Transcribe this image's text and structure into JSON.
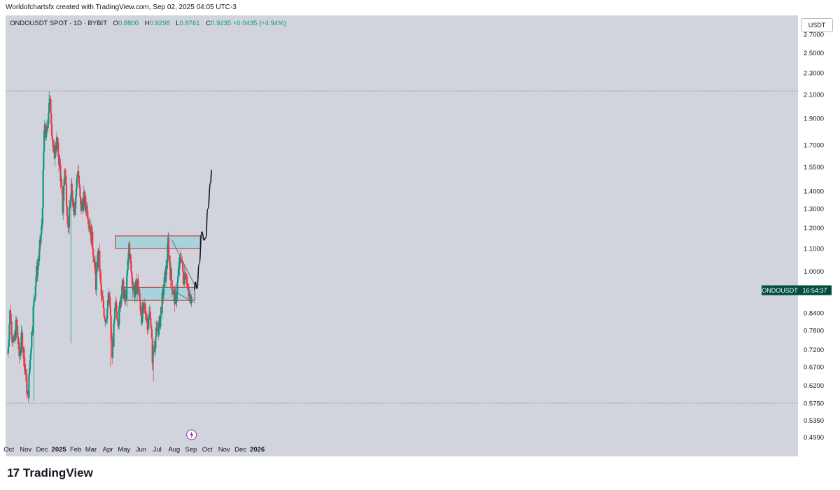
{
  "header": {
    "credit": "Worldofchartsfx created with TradingView.com, Sep 02, 2025 04:05 UTC-3"
  },
  "legend": {
    "symbol": "ONDOUSDT SPOT · 1D · BYBIT",
    "open_label": "O",
    "open": "0.8800",
    "high_label": "H",
    "high": "0.9298",
    "low_label": "L",
    "low": "0.8761",
    "close_label": "C",
    "close": "0.9235",
    "change": "+0.0435 (+4.94%)"
  },
  "currency_button": "USDT",
  "ticker_tag": {
    "symbol": "ONDOUSDT",
    "countdown": "16:54:37"
  },
  "footer": {
    "brand": "TradingView"
  },
  "colors": {
    "up": "#089981",
    "down": "#f23645",
    "zone_fill": "#a8d3dc",
    "zone_border": "#c62828",
    "background": "#d1d4dc"
  },
  "chart_data": {
    "type": "candlestick",
    "symbol": "ONDOUSDT",
    "interval": "1D",
    "y_scale": "log",
    "y_ticks": [
      "2.7000",
      "2.5000",
      "2.3000",
      "2.1000",
      "1.9000",
      "1.7000",
      "1.5500",
      "1.4000",
      "1.3000",
      "1.2000",
      "1.1000",
      "1.0000",
      "0.8400",
      "0.7800",
      "0.7200",
      "0.6700",
      "0.6200",
      "0.5750",
      "0.5350",
      "0.4990"
    ],
    "x_ticks": [
      "Oct",
      "Nov",
      "Dec",
      "2025",
      "Feb",
      "Mar",
      "Apr",
      "May",
      "Jun",
      "Jul",
      "Aug",
      "Sep",
      "Oct",
      "Nov",
      "Dec",
      "2026"
    ],
    "current_price": 0.9235,
    "horizontal_levels": [
      2.13,
      0.575
    ],
    "zones": [
      {
        "name": "resistance",
        "from": "2025-04-15",
        "to": "2025-09-18",
        "low": 1.1,
        "high": 1.16
      },
      {
        "name": "support",
        "from": "2025-05-01",
        "to": "2025-09-08",
        "low": 0.885,
        "high": 0.935
      }
    ],
    "wedge_lines": [
      {
        "start": [
          "2025-07-28",
          1.14
        ],
        "end": [
          "2025-09-10",
          0.935
        ]
      },
      {
        "start": [
          "2025-07-28",
          0.925
        ],
        "end": [
          "2025-09-08",
          0.875
        ]
      }
    ],
    "projection_path": [
      [
        "2025-09-07",
        0.925
      ],
      [
        "2025-09-09",
        0.955
      ],
      [
        "2025-09-12",
        0.93
      ],
      [
        "2025-09-16",
        1.03
      ],
      [
        "2025-09-21",
        1.18
      ],
      [
        "2025-09-25",
        1.14
      ],
      [
        "2025-09-28",
        1.15
      ],
      [
        "2025-10-02",
        1.3
      ],
      [
        "2025-10-07",
        1.45
      ],
      [
        "2025-10-09",
        1.53
      ]
    ],
    "anchors": [
      [
        "2024-09-29",
        0.71
      ],
      [
        "2024-10-03",
        0.84
      ],
      [
        "2024-10-10",
        0.73
      ],
      [
        "2024-10-15",
        0.81
      ],
      [
        "2024-10-20",
        0.7
      ],
      [
        "2024-10-25",
        0.76
      ],
      [
        "2024-11-01",
        0.65
      ],
      [
        "2024-11-05",
        0.58
      ],
      [
        "2024-11-10",
        0.72
      ],
      [
        "2024-11-15",
        0.85
      ],
      [
        "2024-11-20",
        0.98
      ],
      [
        "2024-11-25",
        1.05
      ],
      [
        "2024-12-01",
        1.22
      ],
      [
        "2024-12-05",
        1.8
      ],
      [
        "2024-12-10",
        1.78
      ],
      [
        "2024-12-14",
        2.05
      ],
      [
        "2024-12-17",
        1.98
      ],
      [
        "2024-12-22",
        1.62
      ],
      [
        "2024-12-28",
        1.72
      ],
      [
        "2025-01-03",
        1.55
      ],
      [
        "2025-01-08",
        1.3
      ],
      [
        "2025-01-12",
        1.55
      ],
      [
        "2025-01-18",
        1.2
      ],
      [
        "2025-01-24",
        1.4
      ],
      [
        "2025-01-30",
        1.3
      ],
      [
        "2025-02-05",
        1.55
      ],
      [
        "2025-02-10",
        1.3
      ],
      [
        "2025-02-16",
        1.35
      ],
      [
        "2025-02-22",
        1.3
      ],
      [
        "2025-03-01",
        1.18
      ],
      [
        "2025-03-05",
        1.1
      ],
      [
        "2025-03-10",
        0.95
      ],
      [
        "2025-03-15",
        1.1
      ],
      [
        "2025-03-20",
        0.9
      ],
      [
        "2025-03-28",
        0.82
      ],
      [
        "2025-04-04",
        0.9
      ],
      [
        "2025-04-09",
        0.7
      ],
      [
        "2025-04-15",
        0.86
      ],
      [
        "2025-04-21",
        0.82
      ],
      [
        "2025-04-27",
        0.95
      ],
      [
        "2025-05-04",
        0.88
      ],
      [
        "2025-05-10",
        1.12
      ],
      [
        "2025-05-15",
        0.97
      ],
      [
        "2025-05-20",
        0.92
      ],
      [
        "2025-05-26",
        0.95
      ],
      [
        "2025-06-02",
        0.83
      ],
      [
        "2025-06-08",
        0.86
      ],
      [
        "2025-06-14",
        0.8
      ],
      [
        "2025-06-18",
        0.85
      ],
      [
        "2025-06-22",
        0.7
      ],
      [
        "2025-06-28",
        0.76
      ],
      [
        "2025-07-05",
        0.8
      ],
      [
        "2025-07-12",
        0.92
      ],
      [
        "2025-07-18",
        1.02
      ],
      [
        "2025-07-21",
        1.13
      ],
      [
        "2025-07-25",
        1.0
      ],
      [
        "2025-07-30",
        0.92
      ],
      [
        "2025-08-04",
        0.88
      ],
      [
        "2025-08-10",
        1.02
      ],
      [
        "2025-08-14",
        1.07
      ],
      [
        "2025-08-18",
        0.97
      ],
      [
        "2025-08-22",
        1.01
      ],
      [
        "2025-08-26",
        0.92
      ],
      [
        "2025-08-30",
        0.89
      ],
      [
        "2025-09-02",
        0.9235
      ]
    ]
  }
}
